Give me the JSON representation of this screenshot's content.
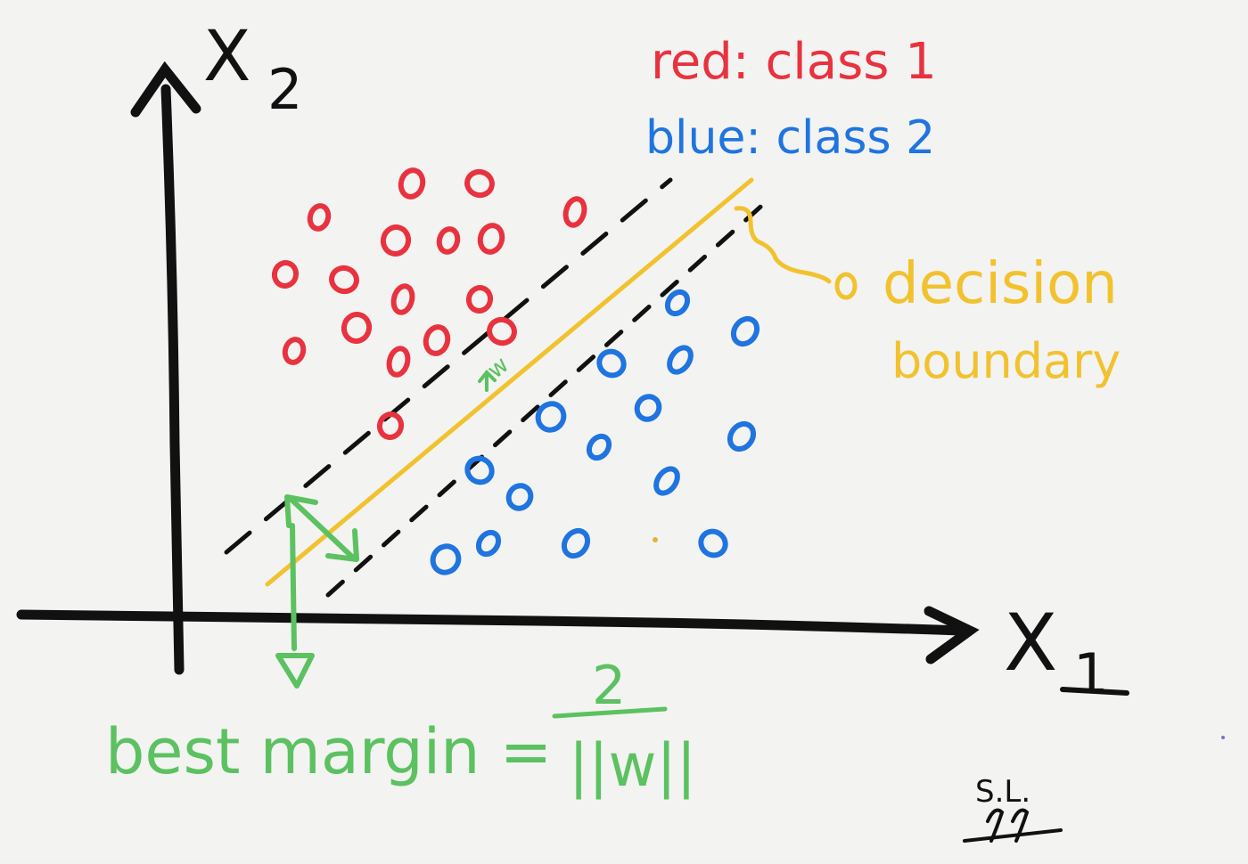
{
  "axes": {
    "x_label": "X",
    "x_subscript": "1",
    "y_label": "X",
    "y_subscript": "2"
  },
  "legend": {
    "red_label": "red: class 1",
    "blue_label": "blue: class 2"
  },
  "annotations": {
    "decision_boundary_line1": "decision",
    "decision_boundary_line2": "boundary",
    "w_label": "w",
    "margin_label": "best margin =",
    "margin_numerator": "2",
    "margin_denominator": "||w||",
    "signature_initials": "S.L."
  },
  "colors": {
    "red": "#e8333f",
    "blue": "#1f74e0",
    "yellow": "#f2c22e",
    "green": "#5cc160",
    "black": "#111111"
  },
  "class1_points": [
    [
      358,
      244
    ],
    [
      462,
      206
    ],
    [
      538,
      206
    ],
    [
      645,
      238
    ],
    [
      320,
      308
    ],
    [
      444,
      270
    ],
    [
      503,
      270
    ],
    [
      551,
      268
    ],
    [
      386,
      314
    ],
    [
      452,
      336
    ],
    [
      538,
      336
    ],
    [
      400,
      368
    ],
    [
      330,
      394
    ],
    [
      490,
      382
    ],
    [
      563,
      372
    ],
    [
      447,
      406
    ],
    [
      438,
      478
    ]
  ],
  "class2_points": [
    [
      760,
      340
    ],
    [
      836,
      372
    ],
    [
      686,
      408
    ],
    [
      763,
      404
    ],
    [
      727,
      458
    ],
    [
      618,
      468
    ],
    [
      672,
      502
    ],
    [
      832,
      490
    ],
    [
      538,
      528
    ],
    [
      748,
      540
    ],
    [
      583,
      558
    ],
    [
      500,
      628
    ],
    [
      548,
      610
    ],
    [
      646,
      610
    ],
    [
      800,
      610
    ]
  ]
}
